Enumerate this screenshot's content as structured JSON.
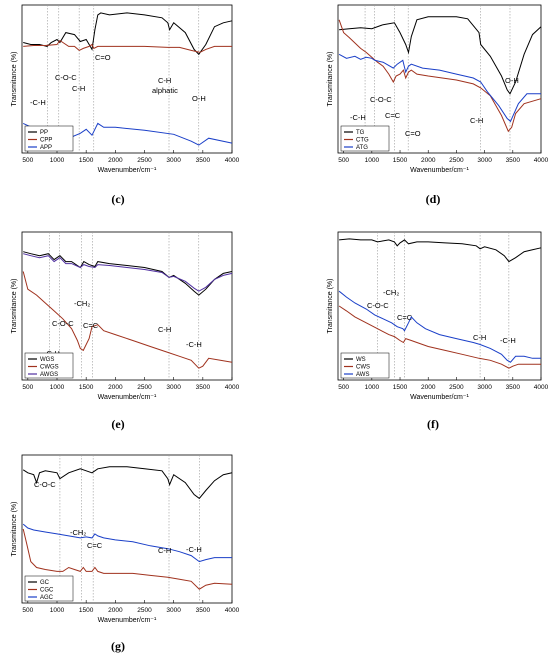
{
  "chart_data": [
    {
      "type": "line",
      "panel_label": "(c)",
      "xlabel": "Wavenumber/cm⁻¹",
      "ylabel": "Transmitance (%)",
      "xlim": [
        400,
        4000
      ],
      "xticks": [
        "500",
        "1000",
        "1500",
        "2000",
        "2500",
        "3000",
        "3500",
        "4000"
      ],
      "ref_lines": [
        835,
        1030,
        1380,
        1630,
        2920,
        3430
      ],
      "legend_position": "bottom-left",
      "annotations": [
        "C=O",
        "C-O-C",
        "C-H",
        "-C-H",
        "C-H",
        "alphatic",
        "O-H"
      ],
      "series": [
        {
          "name": "PP",
          "color": "#000000",
          "x": [
            420,
            550,
            700,
            830,
            900,
            1000,
            1050,
            1150,
            1300,
            1400,
            1500,
            1600,
            1650,
            1700,
            1750,
            1900,
            2200,
            2500,
            2800,
            2900,
            2930,
            3000,
            3200,
            3350,
            3430,
            3550,
            3700,
            3850,
            4000
          ],
          "y": [
            38,
            40,
            40,
            42,
            38,
            35,
            38,
            28,
            30,
            37,
            35,
            45,
            25,
            10,
            8,
            10,
            8,
            10,
            13,
            18,
            25,
            18,
            28,
            45,
            50,
            40,
            22,
            18,
            16
          ]
        },
        {
          "name": "CPP",
          "color": "#a0321e",
          "x": [
            420,
            600,
            800,
            1000,
            1050,
            1200,
            1300,
            1380,
            1450,
            1550,
            1600,
            1630,
            1700,
            2000,
            2500,
            2900,
            3100,
            3300,
            3450,
            3550,
            3700,
            4000
          ],
          "y": [
            42,
            41,
            41,
            40,
            36,
            42,
            42,
            46,
            44,
            42,
            40,
            44,
            42,
            42,
            42,
            43,
            43,
            46,
            48,
            45,
            42,
            42
          ]
        },
        {
          "name": "APP",
          "color": "#1a3fc8",
          "x": [
            420,
            600,
            800,
            900,
            1000,
            1050,
            1100,
            1200,
            1400,
            1500,
            1600,
            1700,
            1800,
            2000,
            2500,
            3000,
            3300,
            3430,
            3600,
            4000
          ],
          "y": [
            120,
            125,
            123,
            132,
            140,
            130,
            133,
            135,
            130,
            126,
            132,
            120,
            124,
            124,
            127,
            131,
            138,
            142,
            135,
            140
          ]
        }
      ]
    },
    {
      "type": "line",
      "panel_label": "(d)",
      "xlabel": "Wavenumber/cm⁻¹",
      "ylabel": "Transmitance (%)",
      "xlim": [
        400,
        4000
      ],
      "xticks": [
        "500",
        "1000",
        "1500",
        "2000",
        "2500",
        "3000",
        "3500",
        "4000"
      ],
      "ref_lines": [
        880,
        1045,
        1405,
        1645,
        2930,
        3450
      ],
      "legend_position": "bottom-left",
      "annotations": [
        "O-H",
        "C-H",
        "C-O-C",
        "C=O",
        "C=C",
        "-C-H"
      ],
      "series": [
        {
          "name": "TG",
          "color": "#000000",
          "x": [
            420,
            600,
            800,
            1000,
            1200,
            1400,
            1500,
            1600,
            1650,
            1700,
            1800,
            2000,
            2200,
            2500,
            2700,
            2900,
            2930,
            3100,
            3300,
            3400,
            3450,
            3550,
            3700,
            3850,
            4000
          ],
          "y": [
            25,
            24,
            23,
            24,
            20,
            18,
            28,
            40,
            48,
            32,
            15,
            12,
            12,
            12,
            14,
            28,
            40,
            52,
            72,
            86,
            90,
            78,
            50,
            30,
            22
          ]
        },
        {
          "name": "CTG",
          "color": "#a0321e",
          "x": [
            420,
            500,
            600,
            800,
            900,
            1000,
            1100,
            1200,
            1300,
            1380,
            1430,
            1500,
            1560,
            1600,
            1650,
            1700,
            1800,
            2000,
            2500,
            2800,
            2930,
            3100,
            3300,
            3420,
            3480,
            3550,
            3700,
            4000
          ],
          "y": [
            15,
            28,
            33,
            44,
            48,
            53,
            58,
            62,
            70,
            78,
            72,
            70,
            66,
            74,
            68,
            66,
            70,
            72,
            76,
            80,
            84,
            92,
            112,
            128,
            124,
            110,
            100,
            95
          ]
        },
        {
          "name": "ATG",
          "color": "#1a3fc8",
          "x": [
            420,
            550,
            700,
            800,
            900,
            1000,
            1050,
            1200,
            1380,
            1450,
            1550,
            1600,
            1650,
            1700,
            1900,
            2200,
            2500,
            2800,
            2930,
            3050,
            3250,
            3400,
            3460,
            3600,
            3750,
            4000
          ],
          "y": [
            50,
            54,
            52,
            55,
            53,
            54,
            56,
            58,
            64,
            60,
            56,
            68,
            62,
            60,
            64,
            66,
            70,
            74,
            78,
            88,
            102,
            115,
            118,
            100,
            90,
            90
          ]
        }
      ]
    },
    {
      "type": "line",
      "panel_label": "(e)",
      "xlabel": "Wavenumber/cm⁻¹",
      "ylabel": "Transmitance (%)",
      "xlim": [
        400,
        4000
      ],
      "xticks": [
        "500",
        "1000",
        "1500",
        "2000",
        "2500",
        "3000",
        "3500",
        "4000"
      ],
      "ref_lines": [
        870,
        1040,
        1420,
        1610,
        2920,
        3430
      ],
      "legend_position": "bottom-left",
      "annotations": [
        "-CH₂",
        "C-O-C",
        "C=C",
        "-C-H",
        "C-H",
        "-C-H"
      ],
      "series": [
        {
          "name": "WGS",
          "color": "#000000",
          "x": [
            420,
            550,
            700,
            850,
            950,
            1050,
            1150,
            1250,
            1400,
            1460,
            1550,
            1650,
            1700,
            1900,
            2200,
            2500,
            2800,
            2920,
            3000,
            3200,
            3350,
            3430,
            3550,
            3700,
            3850,
            4000
          ],
          "y": [
            20,
            22,
            24,
            22,
            28,
            24,
            30,
            30,
            36,
            30,
            33,
            35,
            30,
            32,
            34,
            36,
            40,
            46,
            44,
            52,
            60,
            64,
            58,
            48,
            42,
            40
          ]
        },
        {
          "name": "CWGS",
          "color": "#a0321e",
          "x": [
            420,
            500,
            650,
            800,
            950,
            1100,
            1250,
            1350,
            1400,
            1450,
            1550,
            1600,
            1700,
            1800,
            2000,
            2300,
            2600,
            2900,
            3100,
            3300,
            3430,
            3500,
            3600,
            3800,
            4000
          ],
          "y": [
            40,
            58,
            64,
            72,
            80,
            88,
            98,
            110,
            118,
            120,
            108,
            96,
            94,
            100,
            104,
            110,
            116,
            122,
            126,
            130,
            138,
            136,
            128,
            130,
            132
          ]
        },
        {
          "name": "AWGS",
          "color": "#5030a0",
          "x": [
            420,
            550,
            700,
            850,
            950,
            1050,
            1150,
            1250,
            1400,
            1460,
            1550,
            1650,
            1700,
            1900,
            2200,
            2500,
            2800,
            2920,
            3000,
            3200,
            3350,
            3430,
            3550,
            3700,
            3850,
            4000
          ],
          "y": [
            22,
            24,
            26,
            24,
            30,
            26,
            32,
            32,
            36,
            33,
            35,
            36,
            33,
            34,
            36,
            38,
            41,
            46,
            45,
            50,
            57,
            60,
            56,
            48,
            44,
            42
          ]
        }
      ]
    },
    {
      "type": "line",
      "panel_label": "(f)",
      "xlabel": "Wavenumber/cm⁻¹",
      "ylabel": "Transmitance (%)",
      "xlim": [
        400,
        4000
      ],
      "xticks": [
        "500",
        "1000",
        "1500",
        "2000",
        "2500",
        "3000",
        "3500",
        "4000"
      ],
      "ref_lines": [
        1100,
        1400,
        1580,
        2920,
        3430
      ],
      "legend_position": "bottom-left",
      "annotations": [
        "-CH₂",
        "C-O-C",
        "C=C",
        "C-H",
        "-C-H"
      ],
      "series": [
        {
          "name": "WS",
          "color": "#000000",
          "x": [
            420,
            600,
            800,
            1000,
            1100,
            1200,
            1300,
            1400,
            1450,
            1500,
            1580,
            1650,
            1800,
            2000,
            2300,
            2600,
            2850,
            2920,
            3000,
            3200,
            3350,
            3430,
            3550,
            3700,
            3850,
            4000
          ],
          "y": [
            8,
            7,
            8,
            8,
            10,
            9,
            8,
            10,
            14,
            11,
            8,
            12,
            10,
            10,
            11,
            12,
            14,
            17,
            15,
            18,
            24,
            30,
            26,
            20,
            18,
            16
          ]
        },
        {
          "name": "CWS",
          "color": "#a0321e",
          "x": [
            420,
            550,
            700,
            900,
            1100,
            1300,
            1400,
            1500,
            1560,
            1600,
            1700,
            1800,
            2000,
            2300,
            2600,
            2900,
            3100,
            3300,
            3430,
            3500,
            3600,
            3800,
            4000
          ],
          "y": [
            75,
            80,
            86,
            92,
            98,
            104,
            106,
            110,
            112,
            108,
            110,
            112,
            116,
            120,
            124,
            128,
            130,
            134,
            138,
            136,
            134,
            134,
            134
          ]
        },
        {
          "name": "AWS",
          "color": "#1a3fc8",
          "x": [
            420,
            550,
            700,
            900,
            1050,
            1200,
            1350,
            1450,
            1550,
            1580,
            1650,
            1700,
            1800,
            1950,
            2200,
            2500,
            2800,
            2920,
            3100,
            3300,
            3400,
            3460,
            3550,
            3700,
            3850,
            4000
          ],
          "y": [
            60,
            66,
            72,
            78,
            84,
            88,
            92,
            96,
            98,
            100,
            92,
            86,
            92,
            98,
            104,
            108,
            112,
            114,
            118,
            124,
            130,
            132,
            126,
            126,
            128,
            128
          ]
        }
      ]
    },
    {
      "type": "line",
      "panel_label": "(g)",
      "xlabel": "Wavenumber/cm⁻¹",
      "ylabel": "Transmitance (%)",
      "xlim": [
        400,
        4000
      ],
      "xticks": [
        "500",
        "1000",
        "1500",
        "2000",
        "2500",
        "3000",
        "3500",
        "4000"
      ],
      "ref_lines": [
        1050,
        1420,
        1620,
        2920,
        3440
      ],
      "legend_position": "bottom-left",
      "annotations": [
        "C-O-C",
        "-CH₂",
        "C=C",
        "C-H",
        "-C-H"
      ],
      "series": [
        {
          "name": "GC",
          "color": "#000000",
          "x": [
            420,
            500,
            600,
            650,
            700,
            800,
            1000,
            1050,
            1200,
            1400,
            1500,
            1600,
            1700,
            1900,
            2200,
            2500,
            2800,
            2900,
            2930,
            3000,
            3200,
            3350,
            3440,
            3550,
            3700,
            3850,
            4000
          ],
          "y": [
            15,
            18,
            20,
            28,
            18,
            16,
            18,
            24,
            18,
            14,
            16,
            18,
            14,
            12,
            12,
            14,
            16,
            24,
            30,
            20,
            28,
            40,
            44,
            36,
            26,
            20,
            18
          ]
        },
        {
          "name": "CGC",
          "color": "#a0321e",
          "x": [
            420,
            480,
            550,
            650,
            800,
            1000,
            1100,
            1200,
            1300,
            1400,
            1450,
            1500,
            1600,
            1650,
            1700,
            1800,
            2000,
            2300,
            2600,
            2900,
            3100,
            3300,
            3440,
            3550,
            3700,
            4000
          ],
          "y": [
            75,
            90,
            108,
            114,
            116,
            118,
            118,
            114,
            116,
            118,
            114,
            118,
            118,
            114,
            118,
            120,
            120,
            120,
            122,
            124,
            126,
            128,
            136,
            132,
            130,
            131
          ]
        },
        {
          "name": "AGC",
          "color": "#1a3fc8",
          "x": [
            420,
            500,
            600,
            800,
            1000,
            1200,
            1400,
            1500,
            1600,
            1650,
            1700,
            1800,
            2000,
            2300,
            2600,
            2900,
            3100,
            3300,
            3440,
            3550,
            3700,
            4000
          ],
          "y": [
            70,
            74,
            76,
            78,
            80,
            82,
            84,
            83,
            84,
            80,
            82,
            84,
            86,
            88,
            92,
            95,
            98,
            102,
            108,
            106,
            104,
            104
          ]
        }
      ]
    }
  ]
}
